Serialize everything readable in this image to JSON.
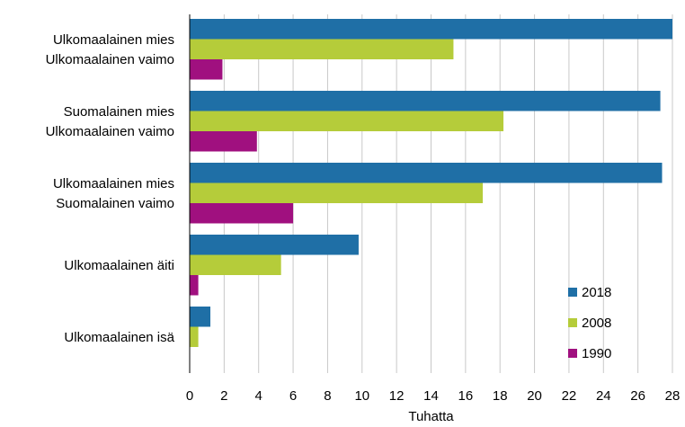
{
  "chart_data": {
    "type": "bar",
    "orientation": "horizontal",
    "categories": [
      [
        "Ulkomaalainen mies",
        "Ulkomaalainen vaimo"
      ],
      [
        "Suomalainen mies",
        "Ulkomaalainen vaimo"
      ],
      [
        "Ulkomaalainen mies",
        "Suomalainen vaimo"
      ],
      [
        "Ulkomaalainen äiti"
      ],
      [
        "Ulkomaalainen isä"
      ]
    ],
    "series": [
      {
        "name": "2018",
        "color": "#1f6fa6",
        "values": [
          28.0,
          27.3,
          27.4,
          9.8,
          1.2
        ]
      },
      {
        "name": "2008",
        "color": "#b5cc3a",
        "values": [
          15.3,
          18.2,
          17.0,
          5.3,
          0.5
        ]
      },
      {
        "name": "1990",
        "color": "#a0107f",
        "values": [
          1.9,
          3.9,
          6.0,
          0.5,
          0.0
        ]
      }
    ],
    "xlabel": "Tuhatta",
    "xlim": [
      0,
      28
    ],
    "xticks": [
      0,
      2,
      4,
      6,
      8,
      10,
      12,
      14,
      16,
      18,
      20,
      22,
      24,
      26,
      28
    ],
    "grid": "vertical",
    "legend": "bottom-right"
  }
}
